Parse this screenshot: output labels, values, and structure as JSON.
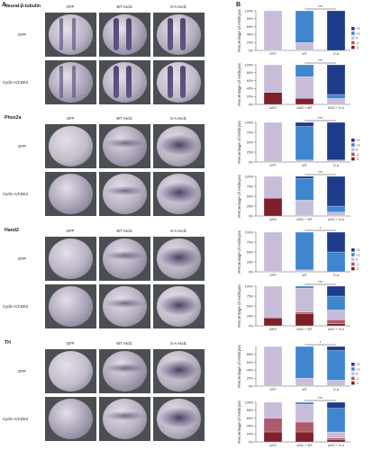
{
  "panel_labels": {
    "a": "A",
    "b": "B"
  },
  "sections": [
    {
      "gene": "Neural-β-tubulin",
      "columns": [
        "GFP",
        "WT Ascl1",
        "S-A Ascl1"
      ],
      "rows": [
        "GFP",
        "Cyclin A/CDK2"
      ],
      "stain": "stripe"
    },
    {
      "gene": "Phox2a",
      "columns": [
        "GFP",
        "WT Ascl1",
        "S-A Ascl1"
      ],
      "rows": [
        "GFP",
        "Cyclin A/CDK2"
      ],
      "stain": "dots"
    },
    {
      "gene": "Hand2",
      "columns": [
        "GFP",
        "WT Ascl1",
        "S-A Ascl1"
      ],
      "rows": [
        "GFP",
        "Cyclin A/CDK2"
      ],
      "stain": "dots"
    },
    {
      "gene": "TH",
      "columns": [
        "GFP",
        "WT Ascl1",
        "S-A Ascl1"
      ],
      "rows": [
        "GFP",
        "Cyclin A/CDK2"
      ],
      "stain": "dots"
    }
  ],
  "chart_data": [
    {
      "type": "bar",
      "stacked": true,
      "categories": [
        "GFP",
        "WT",
        "S-A"
      ],
      "ylabel": "Percentage of embryos",
      "ylim": [
        0,
        100
      ],
      "yticks": [
        "0%",
        "20%",
        "40%",
        "60%",
        "80%",
        "100%"
      ],
      "legend": [
        "+2",
        "+1",
        "0",
        "-1",
        "-2"
      ],
      "significance": {
        "from": 1,
        "to": 2,
        "label": "***"
      },
      "series": [
        {
          "name": "+2",
          "values": [
            0,
            0,
            100
          ]
        },
        {
          "name": "+1",
          "values": [
            0,
            80,
            0
          ]
        },
        {
          "name": "0",
          "values": [
            100,
            20,
            0
          ]
        },
        {
          "name": "-1",
          "values": [
            0,
            0,
            0
          ]
        },
        {
          "name": "-2",
          "values": [
            0,
            0,
            0
          ]
        }
      ]
    },
    {
      "type": "bar",
      "stacked": true,
      "categories": [
        "A/K2",
        "A/K2 + WT",
        "A/K2 + S-A"
      ],
      "ylabel": "Percentage of embryos",
      "ylim": [
        0,
        100
      ],
      "yticks": [
        "0%",
        "20%",
        "40%",
        "60%",
        "80%",
        "100%"
      ],
      "significance": {
        "from": 1,
        "to": 2,
        "label": "***"
      },
      "series": [
        {
          "name": "+2",
          "values": [
            0,
            0,
            75
          ]
        },
        {
          "name": "+1",
          "values": [
            0,
            30,
            10
          ]
        },
        {
          "name": "0",
          "values": [
            70,
            55,
            15
          ]
        },
        {
          "name": "-1",
          "values": [
            0,
            0,
            0
          ]
        },
        {
          "name": "-2",
          "values": [
            30,
            15,
            0
          ]
        }
      ]
    },
    {
      "type": "bar",
      "stacked": true,
      "categories": [
        "GFP",
        "WT",
        "S-A"
      ],
      "ylabel": "Percentage of embryos",
      "ylim": [
        0,
        100
      ],
      "yticks": [
        "0%",
        "25%",
        "50%",
        "75%",
        "100%"
      ],
      "legend": [
        "+2",
        "+1",
        "0",
        "-1",
        "-2"
      ],
      "significance": {
        "from": 1,
        "to": 2,
        "label": "***"
      },
      "series": [
        {
          "name": "+2",
          "values": [
            0,
            10,
            95
          ]
        },
        {
          "name": "+1",
          "values": [
            0,
            85,
            0
          ]
        },
        {
          "name": "0",
          "values": [
            100,
            5,
            5
          ]
        },
        {
          "name": "-1",
          "values": [
            0,
            0,
            0
          ]
        },
        {
          "name": "-2",
          "values": [
            0,
            0,
            0
          ]
        }
      ]
    },
    {
      "type": "bar",
      "stacked": true,
      "categories": [
        "A/K2",
        "A/K2 + WT",
        "A/K2 + S-A"
      ],
      "ylabel": "Percentage of embryos",
      "ylim": [
        0,
        100
      ],
      "yticks": [
        "0%",
        "25%",
        "50%",
        "75%",
        "100%"
      ],
      "significance": {
        "from": 1,
        "to": 2,
        "label": "***"
      },
      "series": [
        {
          "name": "+2",
          "values": [
            0,
            5,
            75
          ]
        },
        {
          "name": "+1",
          "values": [
            0,
            55,
            15
          ]
        },
        {
          "name": "0",
          "values": [
            55,
            40,
            10
          ]
        },
        {
          "name": "-1",
          "values": [
            0,
            0,
            0
          ]
        },
        {
          "name": "-2",
          "values": [
            45,
            0,
            0
          ]
        }
      ]
    },
    {
      "type": "bar",
      "stacked": true,
      "categories": [
        "GFP",
        "WT",
        "S-A"
      ],
      "ylabel": "Percentage of embryos",
      "ylim": [
        0,
        100
      ],
      "yticks": [
        "0%",
        "25%",
        "50%",
        "75%",
        "100%"
      ],
      "legend": [
        "+2",
        "+1",
        "0",
        "-1",
        "-2"
      ],
      "significance": {
        "from": 1,
        "to": 2,
        "label": "*"
      },
      "series": [
        {
          "name": "+2",
          "values": [
            0,
            0,
            50
          ]
        },
        {
          "name": "+1",
          "values": [
            0,
            95,
            50
          ]
        },
        {
          "name": "0",
          "values": [
            100,
            5,
            0
          ]
        },
        {
          "name": "-1",
          "values": [
            0,
            0,
            0
          ]
        },
        {
          "name": "-2",
          "values": [
            0,
            0,
            0
          ]
        }
      ]
    },
    {
      "type": "bar",
      "stacked": true,
      "categories": [
        "A/K2",
        "A/K2 + WT",
        "A/K2 + S-A"
      ],
      "ylabel": "Percentage of embryos",
      "ylim": [
        0,
        100
      ],
      "yticks": [
        "0%",
        "25%",
        "50%",
        "75%",
        "100%"
      ],
      "significance": {
        "from": 1,
        "to": 2,
        "label": "***"
      },
      "series": [
        {
          "name": "+2",
          "values": [
            0,
            0,
            25
          ]
        },
        {
          "name": "+1",
          "values": [
            0,
            5,
            35
          ]
        },
        {
          "name": "0",
          "values": [
            80,
            60,
            25
          ]
        },
        {
          "name": "-1",
          "values": [
            0,
            5,
            10
          ]
        },
        {
          "name": "-2",
          "values": [
            20,
            30,
            5
          ]
        }
      ]
    },
    {
      "type": "bar",
      "stacked": true,
      "categories": [
        "GFP",
        "WT",
        "S-A"
      ],
      "ylabel": "Percentage of embryos",
      "ylim": [
        0,
        100
      ],
      "yticks": [
        "0%",
        "20%",
        "40%",
        "60%",
        "80%"
      ],
      "legend": [
        "+2",
        "+1",
        "0",
        "-1",
        "-2"
      ],
      "significance": {
        "from": 1,
        "to": 2,
        "label": "*"
      },
      "series": [
        {
          "name": "+2",
          "values": [
            0,
            0,
            10
          ]
        },
        {
          "name": "+1",
          "values": [
            0,
            80,
            75
          ]
        },
        {
          "name": "0",
          "values": [
            100,
            20,
            15
          ]
        },
        {
          "name": "-1",
          "values": [
            0,
            0,
            0
          ]
        },
        {
          "name": "-2",
          "values": [
            0,
            0,
            0
          ]
        }
      ]
    },
    {
      "type": "bar",
      "stacked": true,
      "categories": [
        "A/K2",
        "A/K2 + WT",
        "A/K2 + S-A"
      ],
      "ylabel": "Percentage of embryos",
      "ylim": [
        0,
        100
      ],
      "yticks": [
        "0%",
        "20%",
        "40%",
        "60%",
        "80%",
        "100%"
      ],
      "significance": {
        "from": 1,
        "to": 2,
        "label": "***"
      },
      "series": [
        {
          "name": "+2",
          "values": [
            0,
            0,
            15
          ]
        },
        {
          "name": "+1",
          "values": [
            0,
            5,
            60
          ]
        },
        {
          "name": "0",
          "values": [
            40,
            45,
            15
          ]
        },
        {
          "name": "-1",
          "values": [
            35,
            25,
            5
          ]
        },
        {
          "name": "-2",
          "values": [
            25,
            25,
            5
          ]
        }
      ]
    }
  ],
  "colors": {
    "+2": "#1f3c8c",
    "+1": "#3f86cf",
    "0": "#c7bdd8",
    "-1": "#ad5a6c",
    "-2": "#7f1f2a"
  }
}
